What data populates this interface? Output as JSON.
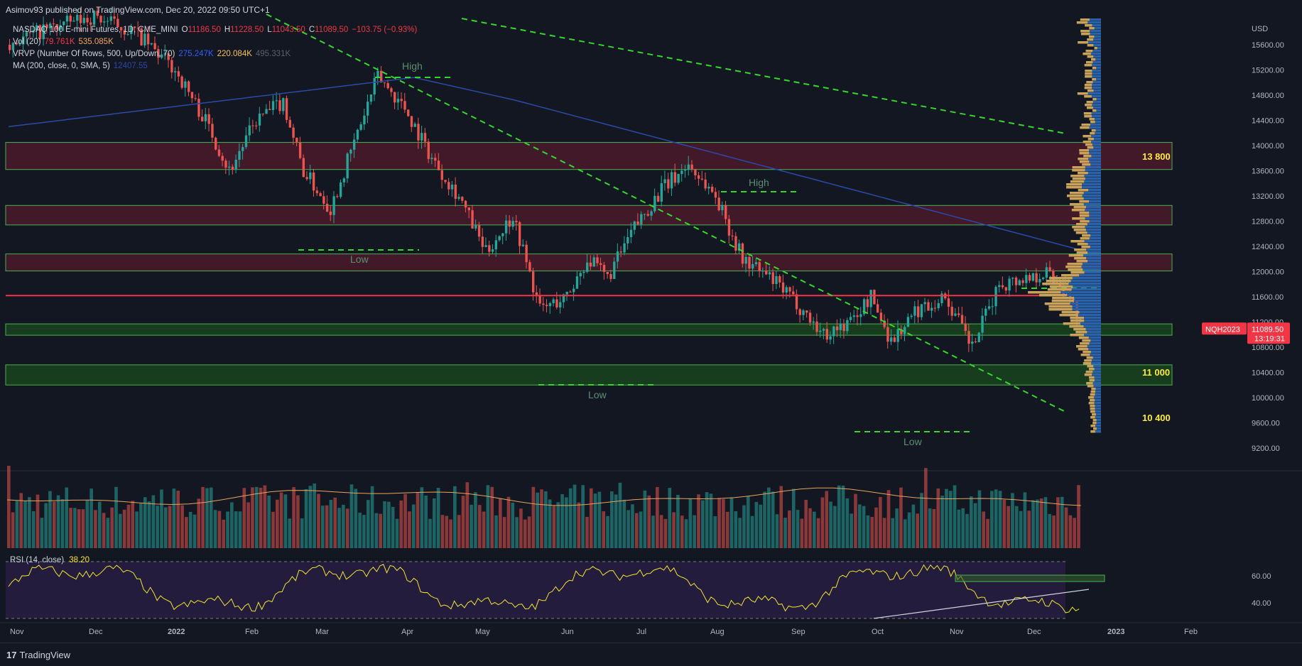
{
  "header": {
    "published": "Asimov93 published on TradingView.com, Dec 20, 2022 09:50 UTC+1"
  },
  "legend": {
    "symbol_name": "NASDAQ 100 E-mini Futures, 1D, CME_MINI",
    "o_label": "O",
    "o_value": "11186.50",
    "h_label": "H",
    "h_value": "11228.50",
    "l_label": "L",
    "l_value": "11043.50",
    "c_label": "C",
    "c_value": "11089.50",
    "change": "−103.75 (−0.93%)",
    "vol_label": "Vol (20)",
    "vol_value1": "79.761K",
    "vol_value2": "535.085K",
    "vrvp_label": "VRVP (Number Of Rows, 500, Up/Down, 70)",
    "vrvp_value1": "275.247K",
    "vrvp_value2": "220.084K",
    "vrvp_value3": "495.331K",
    "ma_label": "MA (200, close, 0, SMA, 5)",
    "ma_value": "12407.55"
  },
  "rsi_legend": {
    "label": "RSI (14, close)",
    "value": "38.20"
  },
  "price_scale": {
    "currency": "USD",
    "ticks": [
      "15600.00",
      "15200.00",
      "14800.00",
      "14400.00",
      "14000.00",
      "13600.00",
      "13200.00",
      "12800.00",
      "12400.00",
      "12000.00",
      "11600.00",
      "11200.00",
      "10800.00",
      "10400.00",
      "10000.00",
      "9600.00",
      "9200.00"
    ],
    "symbol_badge": "NQH2023",
    "last_price": "11089.50",
    "countdown": "13:19:31"
  },
  "rsi_scale": {
    "ticks": [
      "60.00",
      "40.00"
    ]
  },
  "time_axis": {
    "labels": [
      "Nov",
      "Dec",
      "2022",
      "Feb",
      "Mar",
      "Apr",
      "May",
      "Jun",
      "Jul",
      "Aug",
      "Sep",
      "Oct",
      "Nov",
      "Dec",
      "2023",
      "Feb"
    ]
  },
  "annotations": {
    "high1": "High",
    "high2": "High",
    "high3": "High",
    "low1": "Low",
    "low2": "Low",
    "low3": "Low",
    "zone_13800": "13 800",
    "zone_11000": "11 000",
    "zone_10400": "10 400"
  },
  "footer": {
    "brand": "TradingView",
    "logo_mark": "17"
  },
  "colors": {
    "background": "#131722",
    "up_candle": "#26a69a",
    "down_candle": "#ef5350",
    "trendline": "#34d82c",
    "ma_line": "#2b4aa8",
    "red_zone_fill": "#4a1a2a",
    "green_zone_fill": "#1b4a1e",
    "zone_border": "#4caf50",
    "support_line": "#f23645",
    "rsi_line": "#f3e52f",
    "rsi_band": "#2a1f45",
    "volume_ma": "#e8a45f",
    "vrvp_up": "#2962a8",
    "vrvp_down": "#c9a25b"
  },
  "chart_data": {
    "type": "candlestick",
    "symbol": "NQH2023",
    "timeframe": "1D",
    "x_range": [
      "2021-11",
      "2023-02"
    ],
    "ylim": [
      8900,
      15900
    ],
    "current": {
      "open": 11186.5,
      "high": 11228.5,
      "low": 11043.5,
      "close": 11089.5,
      "change": -103.75,
      "change_pct": -0.93
    },
    "swing_points": [
      {
        "label": "High",
        "date": "2022-03",
        "price": 15250
      },
      {
        "label": "Low",
        "date": "2022-03",
        "price": 12950
      },
      {
        "label": "High",
        "date": "2022-08",
        "price": 13700
      },
      {
        "label": "Low",
        "date": "2022-06",
        "price": 11100
      },
      {
        "label": "Low",
        "date": "2022-10",
        "price": 10450
      },
      {
        "label": "High",
        "date": "2022-12",
        "price": 12400
      }
    ],
    "zones": [
      {
        "name": "13 800",
        "low": 13620,
        "high": 14050,
        "color": "red"
      },
      {
        "name": "",
        "low": 12740,
        "high": 13050,
        "color": "red"
      },
      {
        "name": "",
        "low": 12010,
        "high": 12280,
        "color": "red"
      },
      {
        "name": "11 000",
        "low": 10990,
        "high": 11170,
        "color": "green"
      },
      {
        "name": "10 400",
        "low": 10200,
        "high": 10520,
        "color": "green"
      }
    ],
    "horizontal_line": 11620,
    "ma200_last": 12407.55,
    "volume": {
      "last": 79761,
      "ma": 535085
    },
    "rsi": {
      "period": 14,
      "last": 38.2,
      "upper": 70,
      "lower": 30,
      "channel_level": 60
    },
    "vrvp": {
      "up": 275247,
      "down": 220084,
      "total": 495331
    }
  }
}
